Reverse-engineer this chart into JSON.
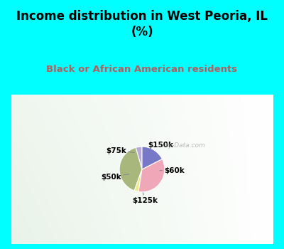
{
  "title": "Income distribution in West Peoria, IL\n(%)",
  "subtitle": "Black or African American residents",
  "slices": [
    {
      "label": "$150k",
      "value": 4.5,
      "color": "#b8aad8"
    },
    {
      "label": "$60k",
      "value": 40.0,
      "color": "#a8b87c"
    },
    {
      "label": "$125k",
      "value": 3.0,
      "color": "#eaea88"
    },
    {
      "label": "$50k",
      "value": 35.0,
      "color": "#f0a8b8"
    },
    {
      "label": "$75k",
      "value": 17.5,
      "color": "#7878c8"
    }
  ],
  "startangle": 90,
  "background_color": "#00ffff",
  "chart_bg_colors": [
    "#d8eed8",
    "#eef8f0",
    "#f8fdf8"
  ],
  "title_color": "#000000",
  "subtitle_color": "#b06060",
  "watermark": "City-Data.com",
  "label_configs": [
    {
      "label": "$150k",
      "xyA": [
        0.535,
        0.825
      ],
      "xyB": [
        0.6,
        0.865
      ],
      "ha": "left",
      "va": "bottom"
    },
    {
      "label": "$60k",
      "xyA": [
        0.8,
        0.5
      ],
      "xyB": [
        0.87,
        0.5
      ],
      "ha": "left",
      "va": "center"
    },
    {
      "label": "$125k",
      "xyA": [
        0.515,
        0.13
      ],
      "xyB": [
        0.555,
        0.06
      ],
      "ha": "center",
      "va": "top"
    },
    {
      "label": "$50k",
      "xyA": [
        0.285,
        0.44
      ],
      "xyB": [
        0.155,
        0.395
      ],
      "ha": "right",
      "va": "center"
    },
    {
      "label": "$75k",
      "xyA": [
        0.37,
        0.8
      ],
      "xyB": [
        0.235,
        0.835
      ],
      "ha": "right",
      "va": "center"
    }
  ]
}
